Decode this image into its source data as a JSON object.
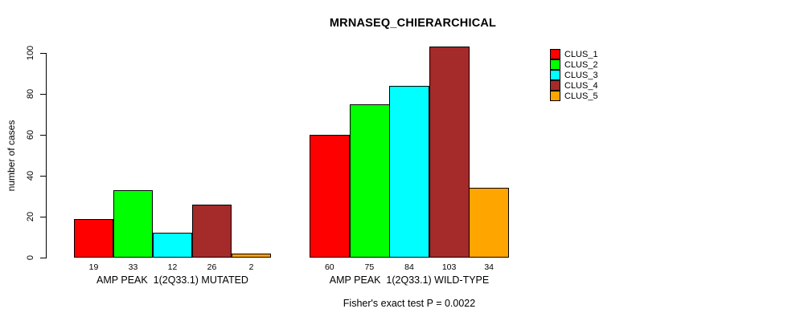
{
  "title": "MRNASEQ_CHIERARCHICAL",
  "footnote": "Fisher's exact test P = 0.0022",
  "chart_data": {
    "type": "bar",
    "title": "MRNASEQ_CHIERARCHICAL",
    "xlabel": "",
    "ylabel": "number of cases",
    "ylim": [
      0,
      100
    ],
    "yticks": [
      0,
      20,
      40,
      60,
      80,
      100
    ],
    "grid": false,
    "legend_position": "right",
    "bar_labels_shown": true,
    "categories": [
      "AMP PEAK  1(2Q33.1) MUTATED",
      "AMP PEAK  1(2Q33.1) WILD-TYPE"
    ],
    "series": [
      {
        "name": "CLUS_1",
        "color": "#FF0000",
        "values": [
          19,
          60
        ]
      },
      {
        "name": "CLUS_2",
        "color": "#00FF00",
        "values": [
          33,
          75
        ]
      },
      {
        "name": "CLUS_3",
        "color": "#00FFFF",
        "values": [
          12,
          84
        ]
      },
      {
        "name": "CLUS_4",
        "color": "#A52A2A",
        "values": [
          26,
          103
        ]
      },
      {
        "name": "CLUS_5",
        "color": "#FFA500",
        "values": [
          2,
          34
        ]
      }
    ],
    "annotation": "Fisher's exact test P = 0.0022"
  }
}
